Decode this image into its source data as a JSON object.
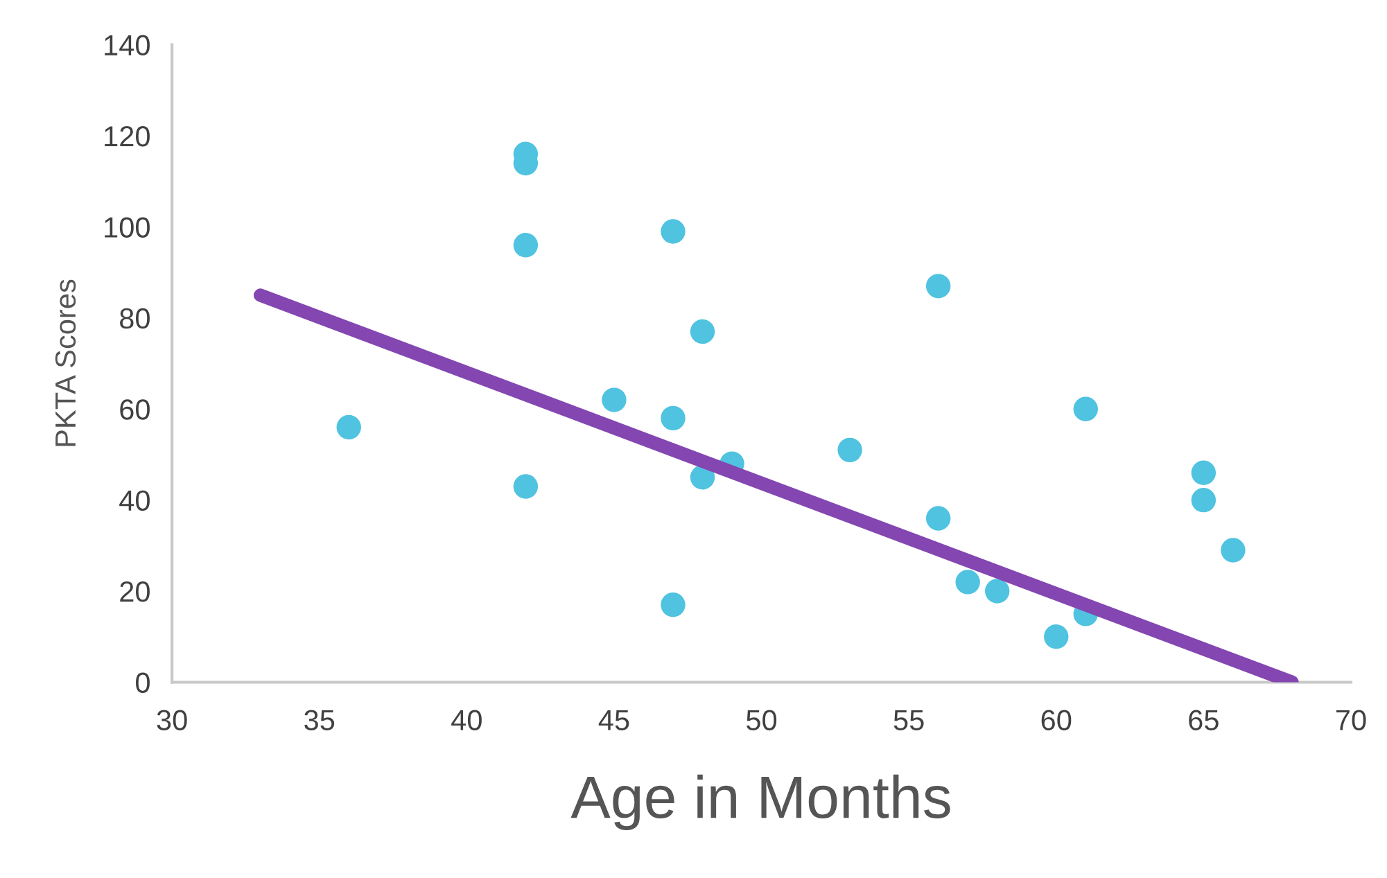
{
  "chart_data": {
    "type": "scatter",
    "xlabel": "Age in Months",
    "ylabel": "PKTA Scores",
    "xlim": [
      30,
      70
    ],
    "xticks": [
      30,
      35,
      40,
      45,
      50,
      55,
      60,
      65,
      70
    ],
    "ylim": [
      0,
      140
    ],
    "yticks": [
      0,
      20,
      40,
      60,
      80,
      100,
      120,
      140
    ],
    "grid": false,
    "series": [
      {
        "marker": "circle",
        "color": "#4fc3e0",
        "x": [
          36,
          42,
          42,
          42,
          42,
          45,
          47,
          47,
          47,
          48,
          48,
          49,
          53,
          56,
          56,
          57,
          58,
          60,
          61,
          61,
          65,
          65,
          66
        ],
        "values": [
          56,
          116,
          114,
          96,
          43,
          62,
          99,
          58,
          17,
          77,
          45,
          48,
          51,
          87,
          36,
          22,
          20,
          10,
          60,
          15,
          46,
          40,
          29
        ]
      },
      {
        "type": "line",
        "color": "#8446b0",
        "x": [
          33,
          68
        ],
        "values": [
          85,
          0
        ]
      }
    ]
  }
}
